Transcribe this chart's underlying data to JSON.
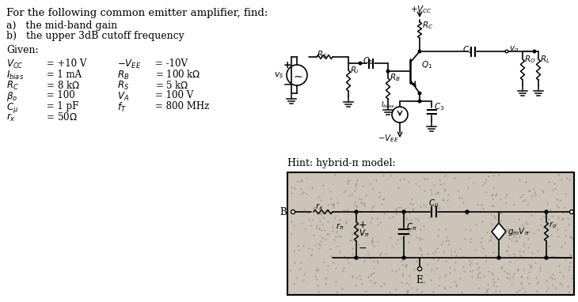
{
  "title_text": "For the following common emitter amplifier, find:",
  "item_a": "a)   the mid-band gain",
  "item_b": "b)   the upper 3dB cutoff frequency",
  "given": "Given:",
  "bg_color": "#ffffff",
  "hint_text": "Hint: hybrid-π model:",
  "text_color": "#000000"
}
